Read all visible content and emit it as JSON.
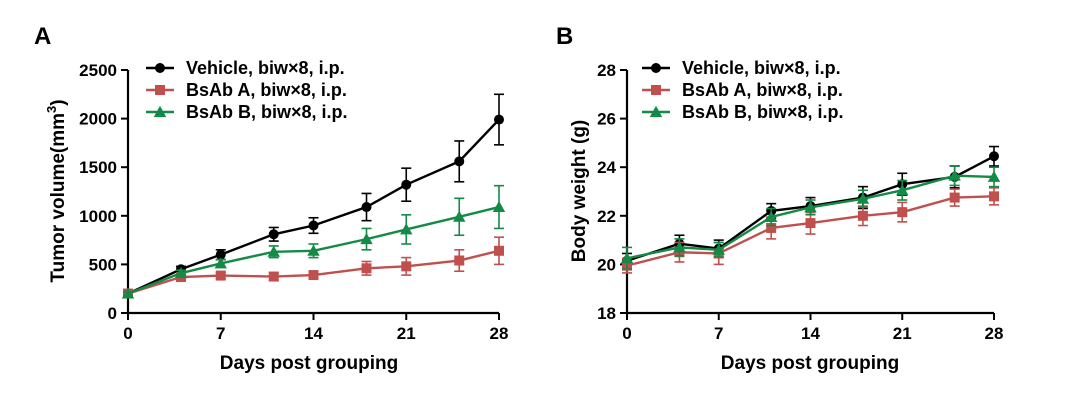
{
  "chart_data": [
    {
      "panel": "A",
      "type": "line",
      "xlabel": "Days post grouping",
      "ylabel": "Tumor volume(mm",
      "ylabel_sup": "3",
      "ylabel_end": ")",
      "xlim": [
        0,
        28
      ],
      "ylim": [
        0,
        2500
      ],
      "xticks": [
        0,
        7,
        14,
        21,
        28
      ],
      "yticks": [
        0,
        500,
        1000,
        1500,
        2000,
        2500
      ],
      "legend_position": "top-left",
      "series": [
        {
          "name": "Vehicle, biw×8, i.p.",
          "color": "#000000",
          "marker": "circle",
          "x": [
            0,
            4,
            7,
            11,
            14,
            18,
            21,
            25,
            28
          ],
          "y": [
            200,
            450,
            600,
            810,
            900,
            1090,
            1320,
            1560,
            1990
          ],
          "err": [
            20,
            30,
            50,
            70,
            80,
            140,
            170,
            210,
            260
          ]
        },
        {
          "name": "BsAb A, biw×8, i.p.",
          "color": "#c0504d",
          "marker": "square",
          "x": [
            0,
            4,
            7,
            11,
            14,
            18,
            21,
            25,
            28
          ],
          "y": [
            200,
            370,
            385,
            375,
            390,
            460,
            480,
            540,
            640
          ],
          "err": [
            20,
            30,
            30,
            40,
            40,
            70,
            90,
            110,
            140
          ]
        },
        {
          "name": "BsAb B, biw×8, i.p.",
          "color": "#138a46",
          "marker": "triangle",
          "x": [
            0,
            4,
            7,
            11,
            14,
            18,
            21,
            25,
            28
          ],
          "y": [
            200,
            410,
            510,
            630,
            640,
            760,
            860,
            990,
            1090
          ],
          "err": [
            20,
            30,
            40,
            60,
            70,
            110,
            150,
            190,
            220
          ]
        }
      ]
    },
    {
      "panel": "B",
      "type": "line",
      "xlabel": "Days post grouping",
      "ylabel": "Body weight (g)",
      "xlim": [
        0,
        28
      ],
      "ylim": [
        18,
        28
      ],
      "xticks": [
        0,
        7,
        14,
        21,
        28
      ],
      "yticks": [
        18,
        20,
        22,
        24,
        26,
        28
      ],
      "legend_position": "top-left",
      "series": [
        {
          "name": "Vehicle, biw×8, i.p.",
          "color": "#000000",
          "marker": "circle",
          "x": [
            0,
            4,
            7,
            11,
            14,
            18,
            21,
            25,
            28
          ],
          "y": [
            20.15,
            20.85,
            20.65,
            22.2,
            22.4,
            22.75,
            23.3,
            23.6,
            24.45
          ],
          "err": [
            0.3,
            0.35,
            0.35,
            0.3,
            0.35,
            0.45,
            0.45,
            0.45,
            0.4
          ]
        },
        {
          "name": "BsAb A, biw×8, i.p.",
          "color": "#c0504d",
          "marker": "square",
          "x": [
            0,
            4,
            7,
            11,
            14,
            18,
            21,
            25,
            28
          ],
          "y": [
            19.95,
            20.5,
            20.45,
            21.5,
            21.7,
            22.0,
            22.15,
            22.75,
            22.8
          ],
          "err": [
            0.3,
            0.4,
            0.45,
            0.45,
            0.45,
            0.4,
            0.4,
            0.35,
            0.35
          ]
        },
        {
          "name": "BsAb B, biw×8, i.p.",
          "color": "#138a46",
          "marker": "triangle",
          "x": [
            0,
            4,
            7,
            11,
            14,
            18,
            21,
            25,
            28
          ],
          "y": [
            20.25,
            20.7,
            20.6,
            21.95,
            22.35,
            22.7,
            23.05,
            23.65,
            23.6
          ],
          "err": [
            0.45,
            0.35,
            0.3,
            0.35,
            0.3,
            0.35,
            0.4,
            0.4,
            0.4
          ]
        }
      ]
    }
  ]
}
